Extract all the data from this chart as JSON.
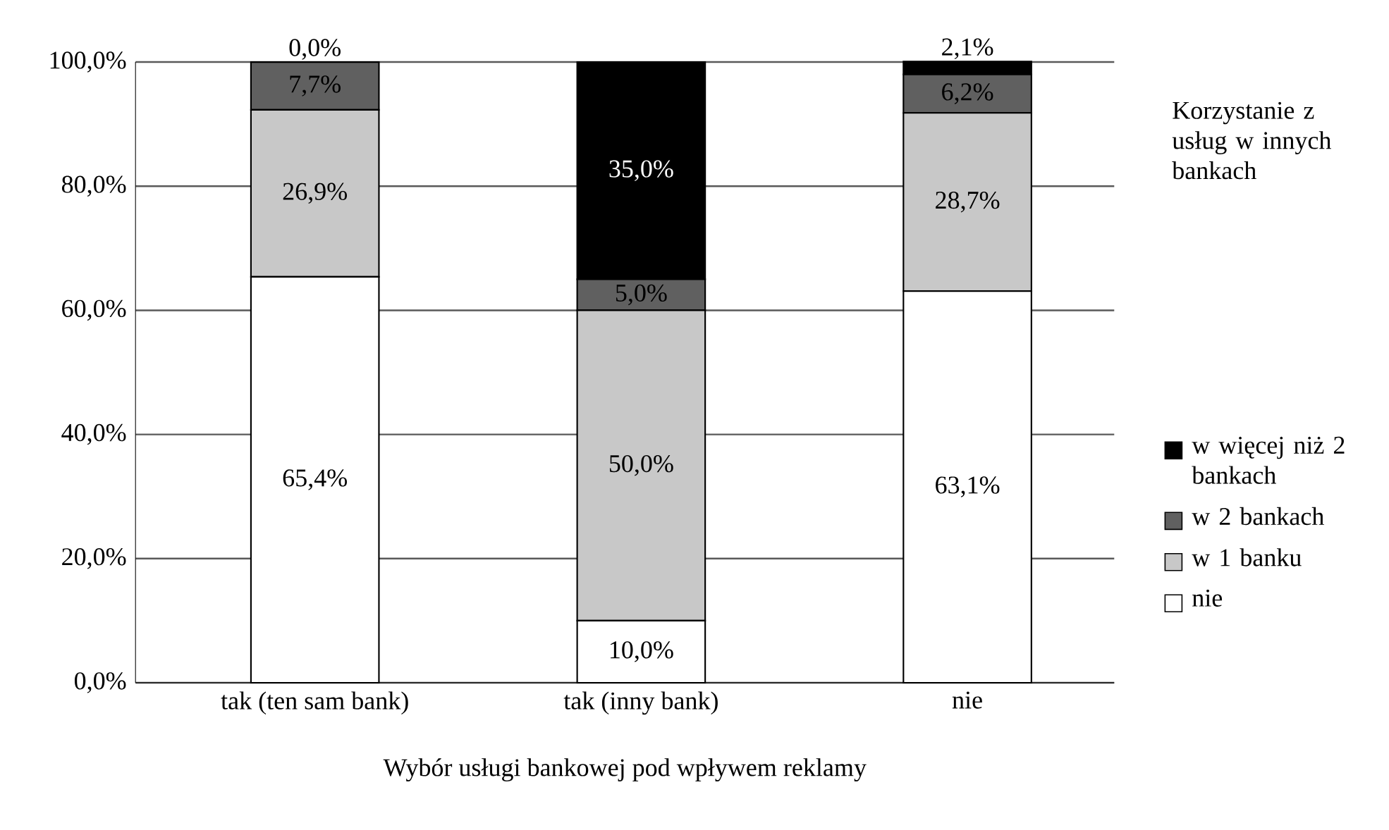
{
  "chart_data": {
    "type": "bar",
    "stacked": true,
    "xlabel": "Wybór usługi bankowej pod wpływem reklamy",
    "legend_title": "Korzystanie z usług w innych bankach",
    "categories": [
      "tak (ten sam bank)",
      "tak (inny bank)",
      "nie"
    ],
    "series": [
      {
        "name": "nie",
        "color": "#ffffff",
        "values": [
          65.4,
          10.0,
          63.1
        ],
        "value_labels": [
          "65,4%",
          "10,0%",
          "63,1%"
        ]
      },
      {
        "name": "w 1 banku",
        "color": "#c8c8c8",
        "values": [
          26.9,
          50.0,
          28.7
        ],
        "value_labels": [
          "26,9%",
          "50,0%",
          "28,7%"
        ]
      },
      {
        "name": "w 2 bankach",
        "color": "#606060",
        "values": [
          7.7,
          5.0,
          6.2
        ],
        "value_labels": [
          "7,7%",
          "5,0%",
          "6,2%"
        ]
      },
      {
        "name": "w więcej niż 2 bankach",
        "color": "#000000",
        "values": [
          0.0,
          35.0,
          2.1
        ],
        "value_labels": [
          "0,0%",
          "35,0%",
          "2,1%"
        ]
      }
    ],
    "ylim": [
      0,
      100
    ],
    "yticks": [
      {
        "value": 0,
        "label": "0,0%"
      },
      {
        "value": 20,
        "label": "20,0%"
      },
      {
        "value": 40,
        "label": "40,0%"
      },
      {
        "value": 60,
        "label": "60,0%"
      },
      {
        "value": 80,
        "label": "80,0%"
      },
      {
        "value": 100,
        "label": "100,0%"
      }
    ],
    "grid": "y",
    "legend": "right"
  }
}
